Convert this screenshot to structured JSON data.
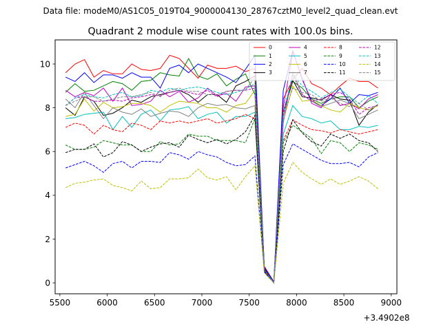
{
  "figure": {
    "suptitle": "Data file: modeM0/AS1C05_019T04_9000004130_28767cztM0_level2_quad_clean.evt"
  },
  "chart_data": {
    "type": "line",
    "title": "Quadrant 2 module wise count rates with 100.0s bins.",
    "xlabel": "",
    "ylabel": "",
    "x_offset_label": "+3.4902e8",
    "xlim": [
      5450,
      9060
    ],
    "ylim": [
      -0.5,
      11.1
    ],
    "xticks": [
      5500,
      6000,
      6500,
      7000,
      7500,
      8000,
      8500,
      9000
    ],
    "yticks": [
      0,
      2,
      4,
      6,
      8,
      10
    ],
    "grid": false,
    "legend_placement": "top-right",
    "legend_columns": 4,
    "x": [
      5560,
      5660,
      5760,
      5860,
      5960,
      6060,
      6160,
      6260,
      6360,
      6460,
      6560,
      6660,
      6760,
      6860,
      6960,
      7060,
      7160,
      7260,
      7360,
      7460,
      7560,
      7660,
      7760,
      7860,
      7960,
      8060,
      8160,
      8260,
      8360,
      8460,
      8560,
      8660,
      8760,
      8860
    ],
    "series": [
      {
        "name": "0",
        "color": "#ff0000",
        "dash": "solid",
        "values": [
          9.6,
          10.0,
          10.2,
          9.4,
          9.7,
          9.55,
          9.55,
          10.0,
          9.75,
          9.7,
          9.8,
          10.4,
          10.25,
          9.8,
          9.35,
          9.95,
          9.8,
          9.8,
          9.9,
          9.65,
          9.8,
          0.75,
          0.05,
          8.4,
          9.3,
          9.8,
          9.1,
          8.9,
          8.6,
          9.0,
          9.35,
          9.2,
          9.2,
          8.9
        ]
      },
      {
        "name": "1",
        "color": "#008000",
        "dash": "solid",
        "values": [
          8.7,
          9.1,
          8.75,
          8.8,
          9.0,
          9.2,
          9.1,
          8.8,
          9.2,
          9.25,
          9.6,
          9.5,
          9.45,
          10.25,
          9.45,
          9.3,
          9.55,
          9.0,
          9.3,
          9.55,
          8.6,
          0.65,
          0.0,
          7.8,
          9.2,
          8.9,
          8.4,
          8.2,
          8.4,
          8.5,
          8.5,
          8.0,
          8.3,
          8.5
        ]
      },
      {
        "name": "2",
        "color": "#0000ff",
        "dash": "solid",
        "values": [
          9.4,
          9.2,
          9.6,
          9.15,
          9.5,
          9.5,
          9.35,
          9.6,
          9.4,
          9.4,
          8.9,
          9.8,
          9.95,
          9.6,
          10.0,
          9.8,
          9.6,
          9.4,
          9.15,
          9.75,
          10.4,
          0.7,
          0.05,
          8.8,
          10.6,
          9.3,
          8.3,
          8.1,
          8.4,
          8.9,
          8.2,
          8.6,
          8.55,
          8.7
        ]
      },
      {
        "name": "3",
        "color": "#000000",
        "dash": "solid",
        "values": [
          8.0,
          7.65,
          8.5,
          8.3,
          7.65,
          7.75,
          8.0,
          8.35,
          8.25,
          8.5,
          8.6,
          8.7,
          8.8,
          8.6,
          8.25,
          8.6,
          8.6,
          8.25,
          9.0,
          9.2,
          9.45,
          0.65,
          0.0,
          7.8,
          9.25,
          8.5,
          8.45,
          8.35,
          8.6,
          8.4,
          8.35,
          7.2,
          7.8,
          8.15
        ]
      },
      {
        "name": "4",
        "color": "#bf00bf",
        "dash": "solid",
        "values": [
          8.8,
          8.5,
          8.7,
          8.55,
          8.9,
          8.3,
          8.9,
          8.1,
          8.15,
          8.3,
          8.8,
          8.5,
          8.75,
          8.25,
          8.45,
          8.9,
          8.55,
          8.65,
          8.3,
          8.95,
          9.0,
          0.6,
          0.0,
          8.0,
          10.55,
          9.35,
          8.2,
          8.0,
          8.6,
          8.1,
          8.2,
          7.95,
          8.4,
          8.6
        ]
      },
      {
        "name": "5",
        "color": "#00bfbf",
        "dash": "solid",
        "values": [
          7.5,
          7.55,
          7.7,
          7.75,
          7.8,
          7.0,
          7.6,
          7.1,
          7.7,
          7.9,
          7.4,
          7.9,
          7.95,
          8.05,
          7.5,
          7.7,
          7.8,
          7.3,
          7.6,
          7.6,
          7.8,
          0.55,
          0.0,
          6.8,
          8.1,
          7.6,
          7.5,
          7.3,
          7.4,
          7.0,
          7.0,
          7.15,
          7.1,
          7.2
        ]
      },
      {
        "name": "6",
        "color": "#bfbf00",
        "dash": "solid",
        "values": [
          7.6,
          7.7,
          8.4,
          7.85,
          8.25,
          8.0,
          8.05,
          8.2,
          8.2,
          8.1,
          7.8,
          8.1,
          8.3,
          8.25,
          8.2,
          8.0,
          8.0,
          7.8,
          8.1,
          8.2,
          8.8,
          0.6,
          0.0,
          7.4,
          9.0,
          8.3,
          8.35,
          8.1,
          7.9,
          7.8,
          8.2,
          8.0,
          7.9,
          8.1
        ]
      },
      {
        "name": "7",
        "color": "#808080",
        "dash": "solid",
        "values": [
          8.4,
          8.0,
          8.7,
          8.1,
          7.5,
          8.0,
          7.8,
          7.7,
          7.95,
          7.6,
          7.75,
          7.85,
          7.8,
          7.6,
          8.0,
          8.2,
          8.1,
          8.15,
          8.0,
          7.95,
          8.1,
          0.55,
          0.0,
          7.3,
          9.65,
          8.6,
          8.3,
          8.05,
          8.2,
          8.35,
          8.2,
          7.5,
          7.7,
          7.9
        ]
      },
      {
        "name": "8",
        "color": "#ff0000",
        "dash": "dashed",
        "values": [
          7.1,
          7.3,
          7.2,
          6.8,
          7.2,
          7.0,
          6.9,
          7.3,
          7.2,
          7.0,
          7.4,
          7.3,
          7.4,
          7.3,
          7.4,
          7.5,
          7.3,
          7.4,
          7.5,
          7.7,
          7.5,
          0.55,
          0.0,
          6.5,
          7.45,
          7.2,
          7.0,
          6.95,
          6.85,
          7.0,
          6.9,
          6.8,
          6.9,
          7.0
        ]
      },
      {
        "name": "9",
        "color": "#008000",
        "dash": "dashed",
        "values": [
          6.3,
          6.1,
          6.1,
          6.2,
          6.5,
          6.4,
          6.3,
          6.3,
          6.0,
          6.0,
          6.45,
          6.3,
          6.35,
          6.8,
          6.7,
          6.7,
          6.5,
          6.5,
          6.5,
          6.4,
          7.5,
          0.5,
          0.0,
          6.4,
          7.2,
          6.9,
          6.6,
          5.9,
          6.5,
          6.4,
          6.0,
          6.4,
          6.3,
          6.1
        ]
      },
      {
        "name": "10",
        "color": "#0000ff",
        "dash": "dashed",
        "values": [
          5.25,
          5.4,
          5.55,
          5.35,
          5.05,
          5.45,
          5.55,
          5.25,
          5.55,
          5.55,
          5.5,
          5.95,
          5.85,
          5.65,
          6.0,
          5.85,
          5.75,
          5.5,
          5.35,
          5.4,
          5.8,
          0.5,
          0.0,
          5.4,
          6.35,
          6.1,
          5.85,
          5.6,
          5.45,
          5.45,
          5.5,
          5.3,
          5.75,
          5.95
        ]
      },
      {
        "name": "11",
        "color": "#000000",
        "dash": "dashed",
        "values": [
          5.95,
          6.1,
          6.1,
          6.35,
          5.75,
          5.95,
          6.45,
          6.3,
          6.0,
          6.2,
          6.35,
          6.4,
          6.2,
          6.75,
          6.55,
          6.4,
          6.55,
          6.35,
          6.55,
          6.9,
          7.65,
          0.55,
          0.0,
          6.0,
          7.45,
          6.85,
          6.45,
          6.25,
          6.8,
          6.6,
          6.8,
          6.5,
          6.4,
          6.0
        ]
      },
      {
        "name": "12",
        "color": "#bf00bf",
        "dash": "dashed",
        "values": [
          8.1,
          8.45,
          8.5,
          8.3,
          8.3,
          8.35,
          8.3,
          8.45,
          8.5,
          8.6,
          8.55,
          8.7,
          8.8,
          8.7,
          8.6,
          8.8,
          8.5,
          8.75,
          8.8,
          8.8,
          8.9,
          0.6,
          0.0,
          7.6,
          9.5,
          8.6,
          8.3,
          8.4,
          8.6,
          8.7,
          8.4,
          7.7,
          8.0,
          8.1
        ]
      },
      {
        "name": "13",
        "color": "#00bfbf",
        "dash": "dashed",
        "values": [
          8.1,
          8.45,
          8.6,
          8.5,
          8.45,
          8.6,
          8.7,
          8.5,
          8.55,
          8.8,
          8.7,
          8.9,
          8.8,
          8.9,
          8.95,
          8.85,
          8.7,
          8.6,
          8.7,
          8.85,
          9.1,
          0.6,
          0.0,
          7.8,
          9.5,
          9.0,
          8.75,
          8.45,
          8.7,
          8.85,
          8.5,
          8.2,
          8.55,
          8.2
        ]
      },
      {
        "name": "14",
        "color": "#bfbf00",
        "dash": "dashed",
        "values": [
          4.35,
          4.55,
          4.6,
          4.7,
          4.75,
          4.45,
          4.35,
          4.2,
          4.65,
          4.3,
          4.35,
          4.75,
          4.75,
          4.8,
          5.2,
          4.8,
          4.7,
          4.85,
          4.25,
          4.85,
          5.35,
          0.45,
          0.0,
          4.55,
          5.5,
          5.05,
          4.75,
          4.5,
          4.75,
          4.5,
          4.65,
          4.85,
          4.65,
          4.3
        ]
      },
      {
        "name": "15",
        "color": "#808080",
        "dash": "dashed",
        "values": [
          8.1,
          8.3,
          8.5,
          8.5,
          8.3,
          8.4,
          8.5,
          8.5,
          8.6,
          8.7,
          8.5,
          8.8,
          8.9,
          8.75,
          8.75,
          8.6,
          8.6,
          8.75,
          8.8,
          8.8,
          9.4,
          0.6,
          0.0,
          7.6,
          8.9,
          8.7,
          8.6,
          8.3,
          8.45,
          8.2,
          8.05,
          8.2,
          7.9,
          8.15
        ]
      }
    ]
  }
}
